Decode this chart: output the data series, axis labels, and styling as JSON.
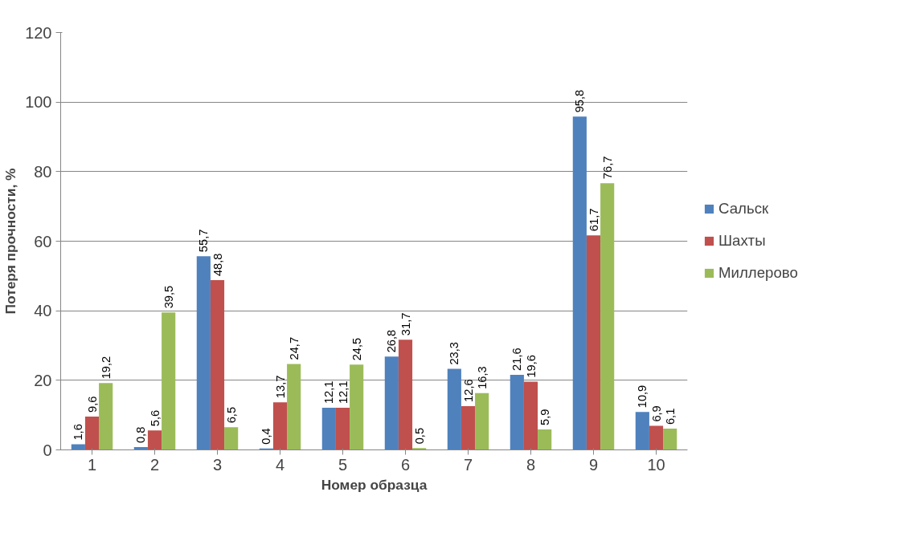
{
  "chart_data": {
    "type": "bar",
    "xlabel": "Номер образца",
    "ylabel": "Потеря прочности, %",
    "categories": [
      "1",
      "2",
      "3",
      "4",
      "5",
      "6",
      "7",
      "8",
      "9",
      "10"
    ],
    "ylim": [
      0,
      120
    ],
    "yticks": [
      0,
      20,
      40,
      60,
      80,
      100,
      120
    ],
    "grid": "y",
    "legend": "right",
    "series": [
      {
        "name": "Сальск",
        "color": "#4f81bd",
        "values": [
          1.6,
          0.8,
          55.7,
          0.4,
          12.1,
          26.8,
          23.3,
          21.6,
          95.8,
          10.9
        ],
        "value_labels": [
          "1,6",
          "0,8",
          "55,7",
          "0,4",
          "12,1",
          "26,8",
          "23,3",
          "21,6",
          "95,8",
          "10,9"
        ]
      },
      {
        "name": "Шахты",
        "color": "#c0504d",
        "values": [
          9.6,
          5.6,
          48.8,
          13.7,
          12.1,
          31.7,
          12.6,
          19.6,
          61.7,
          6.9
        ],
        "value_labels": [
          "9,6",
          "5,6",
          "48,8",
          "13,7",
          "12,1",
          "31,7",
          "12,6",
          "19,6",
          "61,7",
          "6,9"
        ]
      },
      {
        "name": "Миллерово",
        "color": "#9bbb59",
        "values": [
          19.2,
          39.5,
          6.5,
          24.7,
          24.5,
          0.5,
          16.3,
          5.9,
          76.7,
          6.1
        ],
        "value_labels": [
          "19,2",
          "39,5",
          "6,5",
          "24,7",
          "24,5",
          "0,5",
          "16,3",
          "5,9",
          "76,7",
          "6,1"
        ]
      }
    ]
  }
}
